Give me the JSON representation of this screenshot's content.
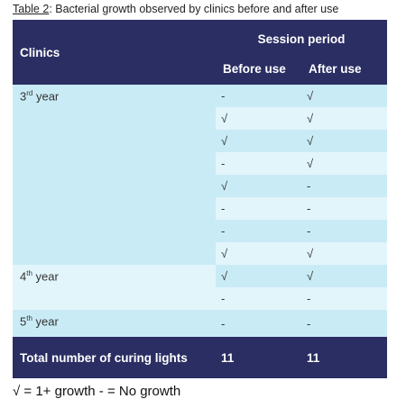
{
  "caption": {
    "label": "Table 2",
    "text": ": Bacterial growth observed by clinics before and after use"
  },
  "header": {
    "clinics": "Clinics",
    "session_period": "Session period",
    "before_use": "Before use",
    "after_use": "After use"
  },
  "groups": [
    {
      "num": "3",
      "sup": "rd",
      "suffix": " year",
      "rows": [
        {
          "before": "-",
          "after": "√"
        },
        {
          "before": "√",
          "after": "√"
        },
        {
          "before": "√",
          "after": "√"
        },
        {
          "before": "-",
          "after": "√"
        },
        {
          "before": "√",
          "after": "-"
        },
        {
          "before": "-",
          "after": "-"
        },
        {
          "before": "-",
          "after": "-"
        },
        {
          "before": "√",
          "after": "√"
        }
      ]
    },
    {
      "num": "4",
      "sup": "th",
      "suffix": " year",
      "rows": [
        {
          "before": "√",
          "after": "√"
        },
        {
          "before": "-",
          "after": "-"
        }
      ]
    },
    {
      "num": "5",
      "sup": "th",
      "suffix": " year",
      "rows": [
        {
          "before": "-",
          "after": "-"
        }
      ]
    }
  ],
  "footer": {
    "label": "Total number of curing lights",
    "before_total": "11",
    "after_total": "11"
  },
  "legend": "√ = 1+ growth   - = No growth"
}
